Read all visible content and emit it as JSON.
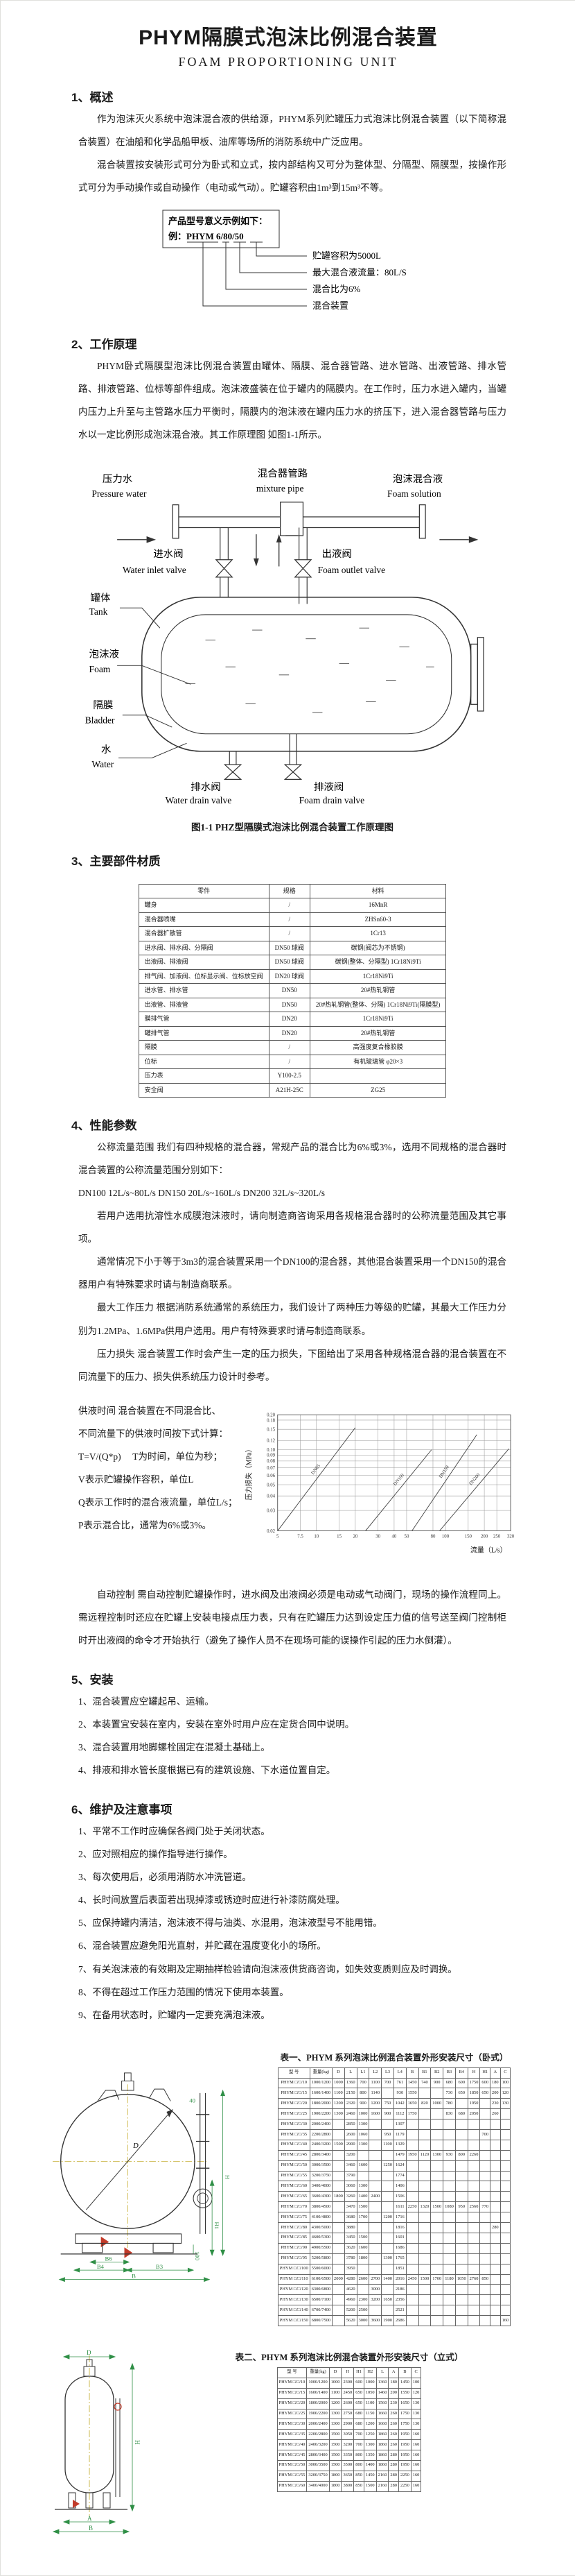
{
  "page": {
    "title": "PHYM隔膜式泡沫比例混合装置",
    "subtitle": "FOAM PROPORTIONING UNIT"
  },
  "sections": {
    "s1": {
      "heading": "1、概述",
      "p1": "作为泡沫灭火系统中泡沫混合液的供给源，PHYM系列贮罐压力式泡沫比例混合装置（以下简称混合装置）在油船和化学品船甲板、油库等场所的消防系统中广泛应用。",
      "p2": "混合装置按安装形式可分为卧式和立式，按内部结构又可分为整体型、分隔型、隔膜型，按操作形式可分为手动操作或自动操作（电动或气动）。贮罐容积由1m³到15m³不等。"
    },
    "model_example": {
      "intro": "产品型号意义示例如下：",
      "example": "例：PHYM 6/80/50",
      "callouts": [
        "贮罐容积为5000L",
        "最大混合液流量：80L/S",
        "混合比为6%",
        "混合装置"
      ]
    },
    "s2": {
      "heading": "2、工作原理",
      "p1": "PHYM卧式隔膜型泡沫比例混合装置由罐体、隔膜、混合器管路、进水管路、出液管路、排水管路、排液管路、位标等部件组成。泡沫液盛装在位于罐内的隔膜内。在工作时，压力水进入罐内，当罐内压力上升至与主管路水压力平衡时，隔膜内的泡沫液在罐内压力水的挤压下，进入混合器管路与压力水以一定比例形成泡沫混合液。其工作原理图 如图1-1所示。"
    },
    "diagram": {
      "caption": "图1-1 PHZ型隔膜式泡沫比例混合装置工作原理图",
      "labels": {
        "pressure_water_zh": "压力水",
        "pressure_water_en": "Pressure water",
        "mixture_pipe_zh": "混合器管路",
        "mixture_pipe_en": "mixture pipe",
        "foam_solution_zh": "泡沫混合液",
        "foam_solution_en": "Foam solution",
        "water_inlet_valve_zh": "进水阀",
        "water_inlet_valve_en": "Water inlet valve",
        "foam_outlet_valve_zh": "出液阀",
        "foam_outlet_valve_en": "Foam outlet valve",
        "tank_zh": "罐体",
        "tank_en": "Tank",
        "foam_zh": "泡沫液",
        "foam_en": "Foam",
        "bladder_zh": "隔膜",
        "bladder_en": "Bladder",
        "water_zh": "水",
        "water_en": "Water",
        "water_drain_valve_zh": "排水阀",
        "water_drain_valve_en": "Water drain valve",
        "foam_drain_valve_zh": "排液阀",
        "foam_drain_valve_en": "Foam drain valve"
      }
    },
    "s3": {
      "heading": "3、主要部件材质",
      "materials": {
        "headers": [
          "零件",
          "规格",
          "材料"
        ],
        "rows": [
          [
            "罐身",
            "/",
            "16MnR"
          ],
          [
            "混合器喷嘴",
            "/",
            "ZHSn60-3"
          ],
          [
            "混合器扩散管",
            "/",
            "1Cr13"
          ],
          [
            "进水阀、排水阀、分隔阀",
            "DN50 球阀",
            "碳钢(阀芯为不锈钢)"
          ],
          [
            "出液阀、排液阀",
            "DN50 球阀",
            "碳钢(整体、分隔型) 1Cr18Ni9Ti"
          ],
          [
            "排气阀、加液阀、位标显示阀、位标放空阀",
            "DN20 球阀",
            "1Cr18Ni9Ti"
          ],
          [
            "进水管、排水管",
            "DN50",
            "20#热轧钢管"
          ],
          [
            "出液管、排液管",
            "DN50",
            "20#热轧钢管(整体、分隔) 1Cr18Ni9Ti(隔膜型)"
          ],
          [
            "膜排气管",
            "DN20",
            "1Cr18Ni9Ti"
          ],
          [
            "罐排气管",
            "DN20",
            "20#热轧钢管"
          ],
          [
            "隔膜",
            "/",
            "高强度复合橡胶膜"
          ],
          [
            "位标",
            "/",
            "有机玻璃管 φ20×3"
          ],
          [
            "压力表",
            "Y100-2.5",
            ""
          ],
          [
            "安全阀",
            "A21H-25C",
            "ZG25"
          ]
        ]
      }
    },
    "s4": {
      "heading": "4、性能参数",
      "p1": "公称流量范围  我们有四种规格的混合器，常规产品的混合比为6%或3%，选用不同规格的混合器时混合装置的公称流量范围分别如下：",
      "p2": "DN100  12L/s~80L/s    DN150  20L/s~160L/s    DN200  32L/s~320L/s",
      "p3": "若用户选用抗溶性水成膜泡沫液时，请向制造商咨询采用各规格混合器时的公称流量范围及其它事项。",
      "p4": "通常情况下小于等于3m3的混合装置采用一个DN100的混合器，其他混合装置采用一个DN150的混合器用户有特殊要求时请与制造商联系。",
      "p5": "最大工作压力  根据消防系统通常的系统压力，我们设计了两种压力等级的贮罐，其最大工作压力分别为1.2MPa、1.6MPa供用户选用。用户有特殊要求时请与制造商联系。",
      "p6": "压力损失  混合装置工作时会产生一定的压力损失，下图给出了采用各种规格混合器的混合装置在不同流量下的压力、损失供系统压力设计时参考。",
      "supply_time": [
        "供液时间  混合装置在不同混合比、",
        "不同流量下的供液时间按下式计算：",
        "T=V/(Q*p)　  T为时间，单位为秒；",
        "V表示贮罐操作容积，单位L",
        "Q表示工作时的混合液流量，单位L/s；",
        "P表示混合比，通常为6%或3%。"
      ],
      "auto_control": "自动控制  需自动控制贮罐操作时，进水阀及出液阀必须是电动或气动阀门，现场的操作流程同上。需远程控制时还应在贮罐上安装电接点压力表，只有在贮罐压力达到设定压力值的信号送至阀门控制柜时开出液阀的命令才开始执行（避免了操作人员不在现场可能的误操作引起的压力水倒灌）。"
    },
    "s5": {
      "heading": "5、安装",
      "items": [
        "1、混合装置应空罐起吊、运输。",
        "2、本装置宜安装在室内，安装在室外时用户应在定货合同中说明。",
        "3、混合装置用地脚螺栓固定在混凝土基础上。",
        "4、排液和排水管长度根据已有的建筑设施、下水道位置自定。"
      ]
    },
    "s6": {
      "heading": "6、维护及注意事项",
      "items": [
        "1、平常不工作时应确保各阀门处于关闭状态。",
        "2、应对照相应的操作指导进行操作。",
        "3、每次使用后，必须用消防水冲洗管道。",
        "4、长时间放置后表面若出现掉漆或锈迹时应进行补漆防腐处理。",
        "5、应保持罐内清洁，泡沫液不得与油类、水混用，泡沫液型号不能用错。",
        "6、混合装置应避免阳光直射，并贮藏在温度变化小的场所。",
        "7、有关泡沫液的有效期及定期抽样检验请向泡沫液供货商咨询，如失效变质则应及时调换。",
        "8、不得在超过工作压力范围的情况下使用本装置。",
        "9、在备用状态时，贮罐内一定要充满泡沫液。"
      ]
    }
  },
  "drawings": {
    "horizontal": {
      "dims": {
        "d": "D",
        "h": "H",
        "h1": "H1",
        "b": "B",
        "b3": "B3",
        "b4": "B4",
        "b6": "B6",
        "n100": "100",
        "n40": "40"
      }
    },
    "vertical": {
      "dims": {
        "d": "D",
        "h": "H",
        "a": "A",
        "b": "B"
      }
    }
  },
  "table1": {
    "caption": "表一、PHYM 系列泡沫比例混合装置外形安装尺寸（卧式）",
    "headers": [
      "型  号",
      "重量(kg)",
      "D",
      "L",
      "L1",
      "L2",
      "L3",
      "L4",
      "B",
      "B1",
      "B2",
      "B3",
      "B4",
      "H",
      "H1",
      "A",
      "C"
    ],
    "rows": [
      [
        "PHYM □/□/10",
        "1000/1200",
        "1000",
        "1360",
        "700",
        "1100",
        "700",
        "761",
        "1450",
        "740",
        "900",
        "680",
        "600",
        "1750",
        "600",
        "180",
        "100"
      ],
      [
        "PHYM □/□/15",
        "1600/1400",
        "1100",
        "2150",
        "800",
        "1140",
        "",
        "930",
        "1550",
        "",
        "",
        "730",
        "650",
        "1850",
        "650",
        "200",
        "120"
      ],
      [
        "PHYM □/□/20",
        "1800/2000",
        "1200",
        "2320",
        "900",
        "1200",
        "750",
        "1042",
        "1650",
        "820",
        "1000",
        "780",
        "",
        "1950",
        "",
        "230",
        "130"
      ],
      [
        "PHYM □/□/25",
        "1900/2200",
        "1300",
        "2460",
        "1000",
        "1600",
        "900",
        "1112",
        "1750",
        "",
        "",
        "830",
        "680",
        "2050",
        "",
        "260",
        ""
      ],
      [
        "PHYM □/□/30",
        "2000/2400",
        "",
        "2850",
        "1300",
        "",
        "",
        "1307",
        "",
        "",
        "",
        "",
        "",
        "",
        "",
        "",
        ""
      ],
      [
        "PHYM □/□/35",
        "2200/2800",
        "",
        "2600",
        "1060",
        "",
        "950",
        "1179",
        "",
        "",
        "",
        "",
        "",
        "",
        "700",
        "",
        ""
      ],
      [
        "PHYM □/□/40",
        "2400/3200",
        "1500",
        "2900",
        "1300",
        "",
        "1100",
        "1329",
        "",
        "",
        "",
        "",
        "",
        "",
        "",
        "",
        ""
      ],
      [
        "PHYM □/□/45",
        "2800/3400",
        "",
        "3200",
        "",
        "",
        "",
        "1479",
        "1950",
        "1120",
        "1300",
        "930",
        "800",
        "2260",
        "",
        "",
        ""
      ],
      [
        "PHYM □/□/50",
        "3000/3500",
        "",
        "3460",
        "1600",
        "",
        "1250",
        "1624",
        "",
        "",
        "",
        "",
        "",
        "",
        "",
        "",
        ""
      ],
      [
        "PHYM □/□/55",
        "3200/3750",
        "",
        "3790",
        "",
        "",
        "",
        "1774",
        "",
        "",
        "",
        "",
        "",
        "",
        "",
        "",
        ""
      ],
      [
        "PHYM □/□/60",
        "3400/4000",
        "",
        "3060",
        "1300",
        "",
        "",
        "1406",
        "",
        "",
        "",
        "",
        "",
        "",
        "",
        "",
        ""
      ],
      [
        "PHYM □/□/65",
        "3600/4300",
        "1800",
        "3260",
        "1400",
        "2400",
        "",
        "1506",
        "",
        "",
        "",
        "",
        "",
        "",
        "",
        "",
        ""
      ],
      [
        "PHYM □/□/70",
        "3800/4500",
        "",
        "3470",
        "1500",
        "",
        "",
        "1611",
        "2250",
        "1320",
        "1500",
        "1080",
        "950",
        "2560",
        "770",
        "",
        ""
      ],
      [
        "PHYM □/□/75",
        "4100/4800",
        "",
        "3680",
        "1700",
        "",
        "1200",
        "1716",
        "",
        "",
        "",
        "",
        "",
        "",
        "",
        "",
        ""
      ],
      [
        "PHYM □/□/80",
        "4300/5000",
        "",
        "3880",
        "",
        "",
        "",
        "1816",
        "",
        "",
        "",
        "",
        "",
        "",
        "",
        "280",
        ""
      ],
      [
        "PHYM □/□/85",
        "4600/5300",
        "",
        "3450",
        "1500",
        "",
        "",
        "1601",
        "",
        "",
        "",
        "",
        "",
        "",
        "",
        "",
        ""
      ],
      [
        "PHYM □/□/90",
        "4900/5500",
        "",
        "3620",
        "1600",
        "",
        "",
        "1686",
        "",
        "",
        "",
        "",
        "",
        "",
        "",
        "",
        ""
      ],
      [
        "PHYM □/□/95",
        "5200/5800",
        "",
        "3780",
        "1800",
        "",
        "1300",
        "1765",
        "",
        "",
        "",
        "",
        "",
        "",
        "",
        "",
        ""
      ],
      [
        "PHYM □/□/100",
        "5500/6000",
        "",
        "3950",
        "",
        "",
        "",
        "1851",
        "",
        "",
        "",
        "",
        "",
        "",
        "",
        "",
        ""
      ],
      [
        "PHYM □/□/110",
        "6100/6500",
        "2000",
        "4280",
        "2600",
        "2700",
        "1400",
        "2016",
        "2450",
        "1500",
        "1700",
        "1180",
        "1050",
        "2760",
        "850",
        "",
        ""
      ],
      [
        "PHYM □/□/120",
        "6300/6800",
        "",
        "4620",
        "",
        "3000",
        "",
        "2186",
        "",
        "",
        "",
        "",
        "",
        "",
        "",
        "",
        ""
      ],
      [
        "PHYM □/□/130",
        "6500/7100",
        "",
        "4960",
        "2300",
        "3200",
        "1650",
        "2356",
        "",
        "",
        "",
        "",
        "",
        "",
        "",
        "",
        ""
      ],
      [
        "PHYM □/□/140",
        "6700/7400",
        "",
        "5200",
        "2500",
        "",
        "",
        "2521",
        "",
        "",
        "",
        "",
        "",
        "",
        "",
        "",
        ""
      ],
      [
        "PHYM □/□/150",
        "6800/7500",
        "",
        "5620",
        "3000",
        "3600",
        "1900",
        "2686",
        "",
        "",
        "",
        "",
        "",
        "",
        "",
        "",
        "160"
      ]
    ]
  },
  "table2": {
    "caption": "表二、PHYM 系列泡沫比例混合装置外形安装尺寸（立式）",
    "headers": [
      "型  号",
      "重量(kg)",
      "D",
      "H",
      "H1",
      "H2",
      "L",
      "A",
      "B",
      "C"
    ],
    "rows": [
      [
        "PHYM □/□/10",
        "1000/1200",
        "1000",
        "2300",
        "600",
        "1000",
        "1360",
        "180",
        "1450",
        "100"
      ],
      [
        "PHYM □/□/15",
        "1600/1400",
        "1100",
        "2450",
        "650",
        "1050",
        "1460",
        "200",
        "1550",
        "120"
      ],
      [
        "PHYM □/□/20",
        "1800/2000",
        "1200",
        "2600",
        "650",
        "1100",
        "1560",
        "230",
        "1650",
        "130"
      ],
      [
        "PHYM □/□/25",
        "1900/2200",
        "1300",
        "2750",
        "680",
        "1150",
        "1660",
        "260",
        "1750",
        "130"
      ],
      [
        "PHYM □/□/30",
        "2000/2400",
        "1300",
        "2900",
        "680",
        "1200",
        "1660",
        "260",
        "1750",
        "130"
      ],
      [
        "PHYM □/□/35",
        "2200/2800",
        "1500",
        "3050",
        "700",
        "1250",
        "1860",
        "260",
        "1950",
        "160"
      ],
      [
        "PHYM □/□/40",
        "2400/3200",
        "1500",
        "3200",
        "700",
        "1300",
        "1860",
        "260",
        "1950",
        "160"
      ],
      [
        "PHYM □/□/45",
        "2800/3400",
        "1500",
        "3350",
        "800",
        "1350",
        "1860",
        "280",
        "1950",
        "160"
      ],
      [
        "PHYM □/□/50",
        "3000/3500",
        "1500",
        "3500",
        "800",
        "1400",
        "1860",
        "280",
        "1950",
        "160"
      ],
      [
        "PHYM □/□/55",
        "3200/3750",
        "1800",
        "3650",
        "850",
        "1450",
        "2160",
        "280",
        "2250",
        "160"
      ],
      [
        "PHYM □/□/60",
        "3400/4000",
        "1800",
        "3800",
        "850",
        "1500",
        "2160",
        "280",
        "2250",
        "160"
      ]
    ]
  },
  "chart_data": {
    "type": "line",
    "title": "",
    "xlabel": "流量（L/s）",
    "ylabel": "压力损失（MPa）",
    "x_scale": "log",
    "y_scale": "log",
    "xlim": [
      5,
      320
    ],
    "ylim": [
      0.02,
      0.2
    ],
    "x_ticks": [
      5,
      7.5,
      10,
      15,
      20,
      30,
      40,
      50,
      80,
      100,
      150,
      200,
      250,
      320
    ],
    "y_ticks": [
      0.02,
      0.03,
      0.04,
      0.05,
      0.06,
      0.07,
      0.08,
      0.09,
      0.1,
      0.12,
      0.15,
      0.18,
      0.2
    ],
    "grid": true,
    "legend": "labels-on-lines",
    "series": [
      {
        "name": "DN65",
        "points": [
          [
            5,
            0.02
          ],
          [
            20,
            0.155
          ]
        ]
      },
      {
        "name": "DN100",
        "points": [
          [
            24,
            0.02
          ],
          [
            78,
            0.1
          ]
        ]
      },
      {
        "name": "DN150",
        "points": [
          [
            55,
            0.02
          ],
          [
            175,
            0.135
          ]
        ]
      },
      {
        "name": "DN200",
        "points": [
          [
            90,
            0.02
          ],
          [
            310,
            0.102
          ]
        ]
      }
    ]
  }
}
